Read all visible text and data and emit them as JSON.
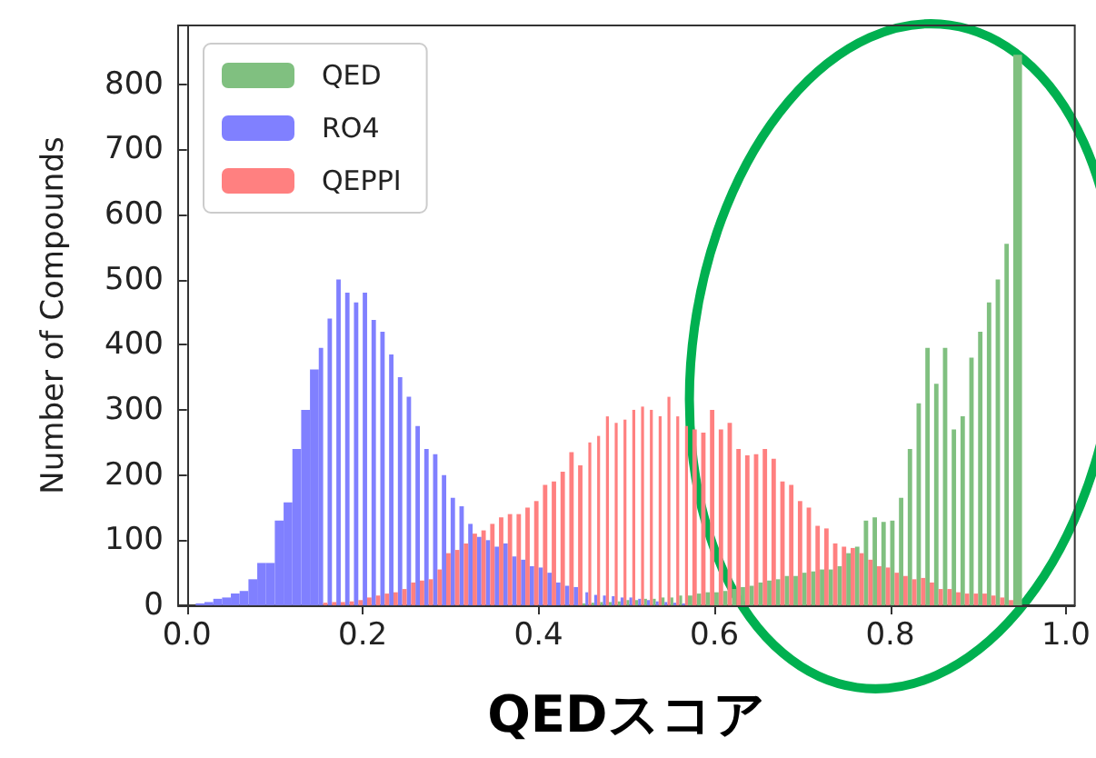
{
  "chart_data": {
    "type": "histogram",
    "xlabel": "QEDスコア",
    "ylabel": "Number of Compounds",
    "xlim": [
      -0.01,
      1.01
    ],
    "ylim": [
      0,
      890
    ],
    "xticks": [
      {
        "value": 0,
        "label": "0.0"
      },
      0.2,
      0.4,
      0.6,
      0.8,
      {
        "value": 1,
        "label": "1.0"
      }
    ],
    "yticks": [
      0,
      100,
      200,
      300,
      400,
      500,
      600,
      700,
      800
    ],
    "legend": "top left",
    "bins": [
      0.01,
      0.02,
      0.03,
      0.04,
      0.05,
      0.06,
      0.07,
      0.08,
      0.09,
      0.1,
      0.11,
      0.12,
      0.13,
      0.14,
      0.15,
      0.16,
      0.17,
      0.18,
      0.19,
      0.2,
      0.21,
      0.22,
      0.23,
      0.24,
      0.25,
      0.26,
      0.27,
      0.28,
      0.29,
      0.3,
      0.31,
      0.32,
      0.33,
      0.34,
      0.35,
      0.36,
      0.37,
      0.38,
      0.39,
      0.4,
      0.41,
      0.42,
      0.43,
      0.44,
      0.45,
      0.46,
      0.47,
      0.48,
      0.49,
      0.5,
      0.51,
      0.52,
      0.53,
      0.54,
      0.55,
      0.56,
      0.57,
      0.58,
      0.59,
      0.6,
      0.61,
      0.62,
      0.63,
      0.64,
      0.65,
      0.66,
      0.67,
      0.68,
      0.69,
      0.7,
      0.71,
      0.72,
      0.73,
      0.74,
      0.75,
      0.76,
      0.77,
      0.78,
      0.79,
      0.8,
      0.81,
      0.82,
      0.83,
      0.84,
      0.85,
      0.86,
      0.87,
      0.88,
      0.89,
      0.9,
      0.91,
      0.92,
      0.93,
      0.94,
      0.95
    ],
    "series": [
      {
        "name": "QED",
        "color": "#80c080",
        "values": [
          null,
          null,
          null,
          null,
          null,
          null,
          null,
          null,
          null,
          null,
          null,
          null,
          null,
          null,
          null,
          null,
          null,
          null,
          null,
          null,
          null,
          null,
          null,
          null,
          null,
          null,
          null,
          null,
          null,
          null,
          null,
          null,
          null,
          null,
          null,
          null,
          null,
          null,
          null,
          null,
          null,
          null,
          null,
          null,
          3,
          4,
          5,
          5,
          6,
          8,
          8,
          10,
          10,
          12,
          12,
          15,
          15,
          18,
          20,
          20,
          22,
          25,
          28,
          30,
          35,
          38,
          40,
          45,
          45,
          50,
          52,
          55,
          55,
          60,
          80,
          90,
          130,
          135,
          128,
          130,
          165,
          240,
          310,
          395,
          340,
          395,
          270,
          290,
          380,
          420,
          465,
          500,
          555,
          845
        ]
      },
      {
        "name": "RO4",
        "color": "#8080ff",
        "values": [
          3,
          5,
          10,
          12,
          18,
          22,
          40,
          65,
          65,
          130,
          158,
          240,
          300,
          362,
          395,
          440,
          500,
          480,
          465,
          480,
          438,
          420,
          385,
          350,
          320,
          275,
          240,
          232,
          200,
          165,
          152,
          125,
          105,
          100,
          90,
          95,
          75,
          70,
          60,
          58,
          50,
          35,
          30,
          28,
          20,
          16,
          15,
          14,
          12,
          12,
          10,
          8,
          6,
          5,
          4,
          3,
          null,
          null,
          null,
          null,
          null,
          null,
          null,
          null,
          null,
          null,
          null,
          null,
          null,
          null,
          null,
          null,
          null,
          null,
          null,
          null,
          null,
          null,
          null,
          null,
          null,
          null,
          null,
          null,
          null,
          null,
          null,
          null,
          null,
          null,
          null,
          null,
          null,
          null
        ]
      },
      {
        "name": "QEPPI",
        "color": "#ff8080",
        "values": [
          null,
          null,
          null,
          null,
          null,
          null,
          null,
          null,
          null,
          null,
          null,
          null,
          null,
          null,
          4,
          5,
          5,
          6,
          8,
          12,
          15,
          18,
          20,
          25,
          35,
          38,
          40,
          55,
          80,
          85,
          95,
          110,
          115,
          125,
          135,
          140,
          140,
          150,
          160,
          185,
          190,
          205,
          235,
          215,
          250,
          260,
          290,
          280,
          285,
          300,
          305,
          300,
          290,
          320,
          290,
          275,
          270,
          265,
          300,
          270,
          280,
          240,
          230,
          232,
          240,
          225,
          190,
          185,
          160,
          150,
          122,
          118,
          95,
          90,
          88,
          80,
          70,
          60,
          58,
          50,
          45,
          40,
          42,
          35,
          25,
          25,
          20,
          18,
          18,
          18,
          15,
          12,
          8,
          null
        ]
      }
    ]
  }
}
